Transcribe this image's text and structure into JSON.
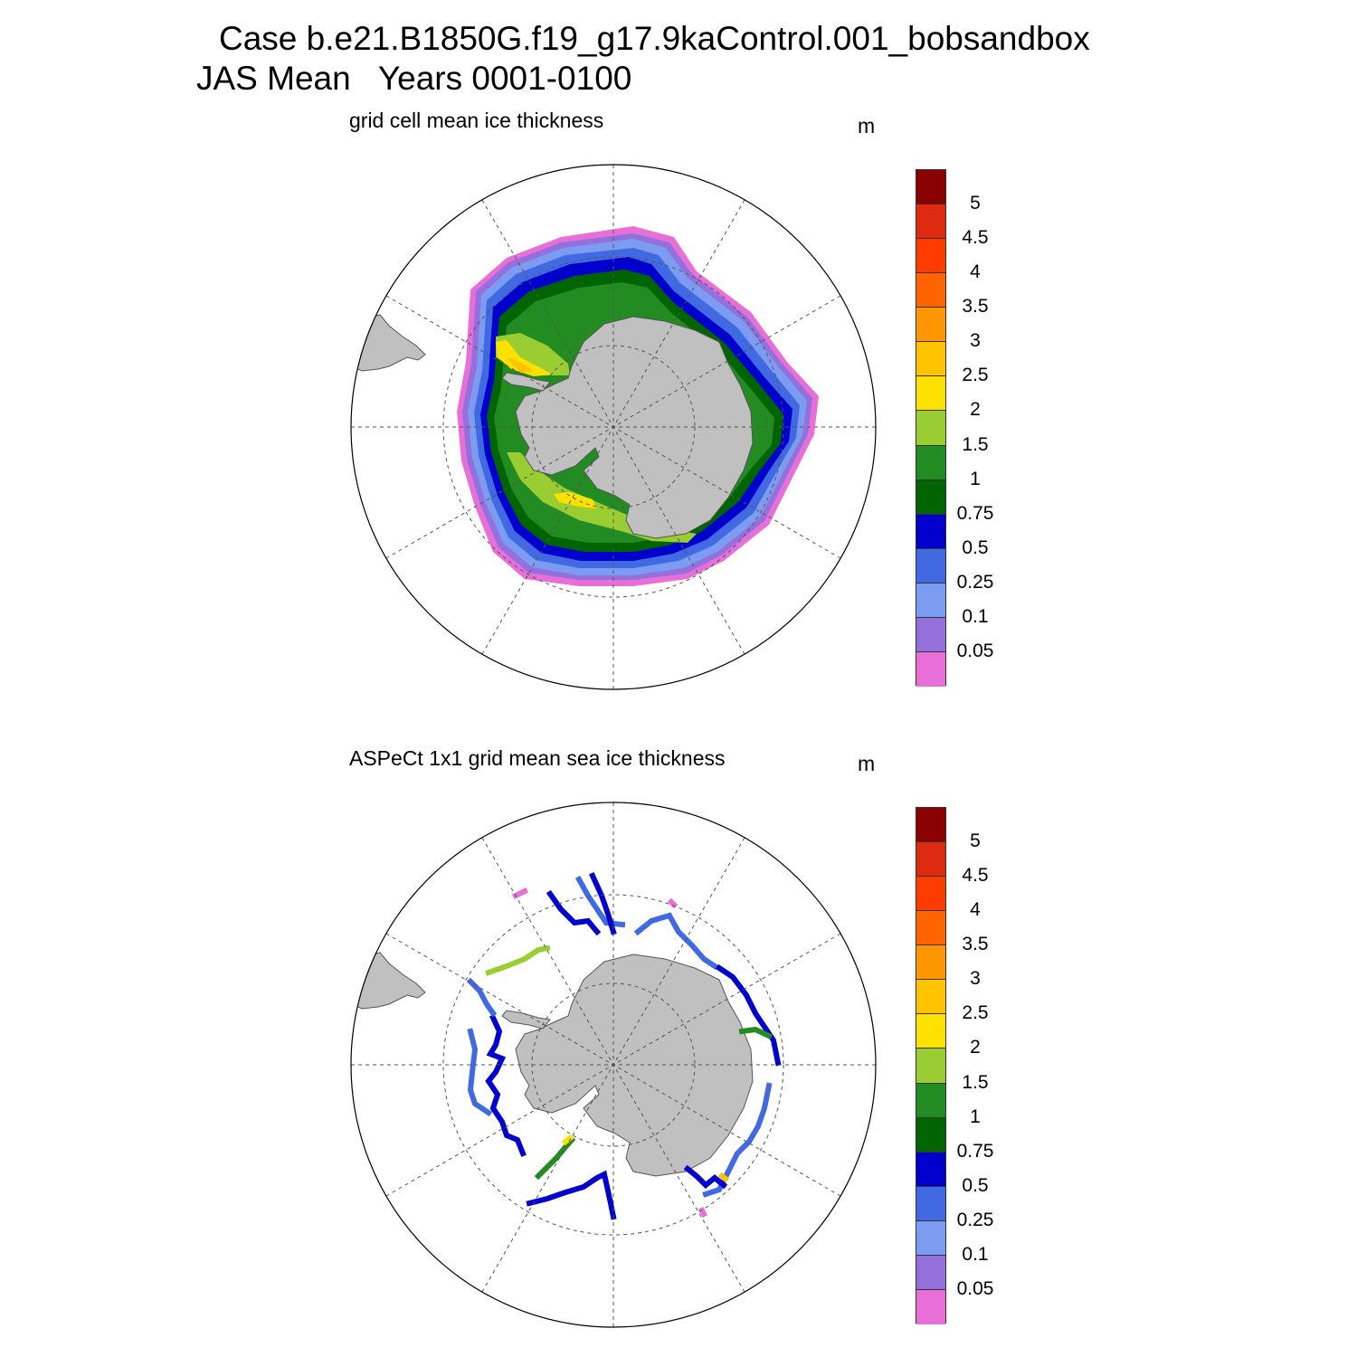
{
  "title_line1": "Case b.e21.B1850G.f19_g17.9kaControl.001_bobsandbox",
  "title_line2": "JAS Mean   Years 0001-0100",
  "colors": {
    "land": "#c0c0c0",
    "grid": "#555555",
    "ocean": "#ffffff",
    "palette": [
      "#e86fd8",
      "#9370db",
      "#7b9cf0",
      "#4169e1",
      "#0000cd",
      "#006400",
      "#228b22",
      "#9acd32",
      "#ffe100",
      "#ffc300",
      "#ff9500",
      "#ff6400",
      "#ff3c00",
      "#dd2a10",
      "#8b0000"
    ]
  },
  "colorbar_labels": [
    "5",
    "4.5",
    "4",
    "3.5",
    "3",
    "2.5",
    "2",
    "1.5",
    "1",
    "0.75",
    "0.5",
    "0.25",
    "0.1",
    "0.05"
  ],
  "panels": [
    {
      "id": "model",
      "title": "grid cell mean ice thickness",
      "units": "m",
      "icons": [
        "antarctica-land",
        "south-america-land",
        "polar-grid"
      ]
    },
    {
      "id": "obs",
      "title": "ASPeCt 1x1 grid mean sea ice thickness",
      "units": "m",
      "icons": [
        "antarctica-land",
        "south-america-land",
        "polar-grid"
      ]
    }
  ]
}
